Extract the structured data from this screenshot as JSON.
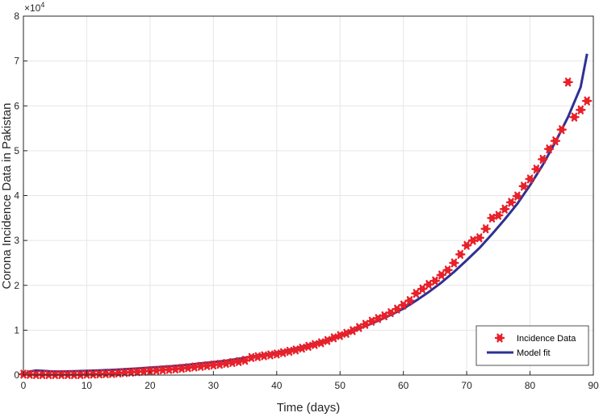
{
  "chart_data": {
    "type": "scatter",
    "xlabel": "Time (days)",
    "ylabel": "Corona  Incidence Data in Pakistan",
    "y_exponent_label": "×10",
    "y_exponent_power": "4",
    "xlim": [
      0,
      90
    ],
    "ylim": [
      0,
      80000
    ],
    "x_ticks": [
      0,
      10,
      20,
      30,
      40,
      50,
      60,
      70,
      80,
      90
    ],
    "y_ticks": [
      0,
      10000,
      20000,
      30000,
      40000,
      50000,
      60000,
      70000,
      80000
    ],
    "x_tick_labels": [
      "0",
      "10",
      "20",
      "30",
      "40",
      "50",
      "60",
      "70",
      "80",
      "90"
    ],
    "y_tick_labels": [
      "0",
      "1",
      "2",
      "3",
      "4",
      "5",
      "6",
      "7",
      "8"
    ],
    "grid": true,
    "legend_position": "bottom-right",
    "series": [
      {
        "name": "Incidence Data",
        "style": "markers",
        "color": "#e8212a",
        "x": [
          0,
          1,
          2,
          3,
          4,
          5,
          6,
          7,
          8,
          9,
          10,
          11,
          12,
          13,
          14,
          15,
          16,
          17,
          18,
          19,
          20,
          21,
          22,
          23,
          24,
          25,
          26,
          27,
          28,
          29,
          30,
          31,
          32,
          33,
          34,
          35,
          36,
          37,
          38,
          39,
          40,
          41,
          42,
          43,
          44,
          45,
          46,
          47,
          48,
          49,
          50,
          51,
          52,
          53,
          54,
          55,
          56,
          57,
          58,
          59,
          60,
          61,
          62,
          63,
          64,
          65,
          66,
          67,
          68,
          69,
          70,
          71,
          72,
          73,
          74,
          75,
          76,
          77,
          78,
          79,
          80,
          81,
          82,
          83,
          84,
          85,
          86,
          87,
          88,
          89
        ],
        "y": [
          200,
          150,
          100,
          100,
          100,
          100,
          100,
          100,
          100,
          100,
          200,
          200,
          250,
          300,
          350,
          450,
          550,
          650,
          750,
          850,
          950,
          1050,
          1150,
          1250,
          1350,
          1500,
          1650,
          1800,
          1950,
          2100,
          2250,
          2400,
          2600,
          2800,
          3000,
          3300,
          3900,
          4100,
          4300,
          4500,
          4700,
          5000,
          5300,
          5600,
          6000,
          6400,
          6800,
          7200,
          7700,
          8300,
          8800,
          9300,
          9900,
          10600,
          11300,
          12000,
          12600,
          13200,
          13900,
          14700,
          15600,
          16600,
          18200,
          19200,
          20200,
          21000,
          22300,
          23400,
          25000,
          26900,
          28900,
          30000,
          30600,
          32600,
          35000,
          35600,
          37000,
          38500,
          39900,
          42100,
          43700,
          45900,
          48100,
          50400,
          52200,
          54700,
          65300,
          57500,
          59100,
          61100
        ]
      },
      {
        "name": "Model fit",
        "style": "line",
        "color": "#2e3192",
        "x": [
          0,
          1,
          2,
          3,
          4,
          5,
          6,
          8,
          10,
          12,
          14,
          16,
          18,
          20,
          22,
          24,
          26,
          28,
          30,
          32,
          34,
          36,
          38,
          40,
          42,
          44,
          46,
          48,
          50,
          52,
          54,
          56,
          58,
          60,
          62,
          64,
          66,
          68,
          70,
          72,
          74,
          76,
          78,
          80,
          82,
          84,
          86,
          88,
          89
        ],
        "y": [
          0,
          800,
          1000,
          950,
          850,
          800,
          800,
          850,
          950,
          1050,
          1150,
          1300,
          1450,
          1650,
          1850,
          2050,
          2300,
          2600,
          2900,
          3200,
          3650,
          4100,
          4550,
          5000,
          5600,
          6300,
          7100,
          7900,
          8900,
          9800,
          10900,
          12100,
          13400,
          14800,
          16600,
          18500,
          20600,
          23000,
          25600,
          28300,
          31400,
          34700,
          38200,
          42300,
          46800,
          51900,
          57500,
          64200,
          71600
        ]
      }
    ]
  }
}
